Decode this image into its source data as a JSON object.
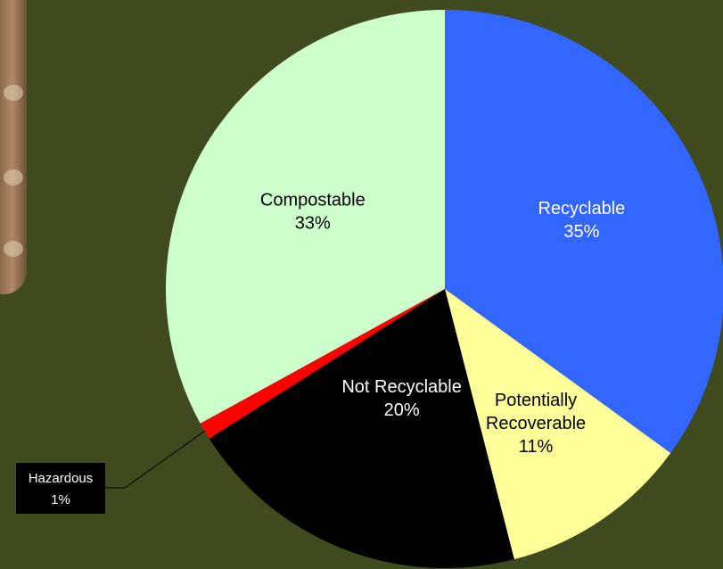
{
  "chart_data": {
    "type": "pie",
    "slices": [
      {
        "label_lines": [
          "Recyclable"
        ],
        "value": 35,
        "value_text": "35%",
        "color": "#3366ff",
        "text_color": "#ffffff"
      },
      {
        "label_lines": [
          "Potentially",
          "Recoverable"
        ],
        "value": 11,
        "value_text": "11%",
        "color": "#ffff99",
        "text_color": "#000000"
      },
      {
        "label_lines": [
          "Not Recyclable"
        ],
        "value": 20,
        "value_text": "20%",
        "color": "#000000",
        "text_color": "#ffffff"
      },
      {
        "label_lines": [
          "Hazardous"
        ],
        "value": 1,
        "value_text": "1%",
        "color": "#ff0000",
        "text_color": "#ffffff",
        "callout": true
      },
      {
        "label_lines": [
          "Compostable"
        ],
        "value": 33,
        "value_text": "33%",
        "color": "#ccffcc",
        "text_color": "#000000"
      }
    ]
  }
}
